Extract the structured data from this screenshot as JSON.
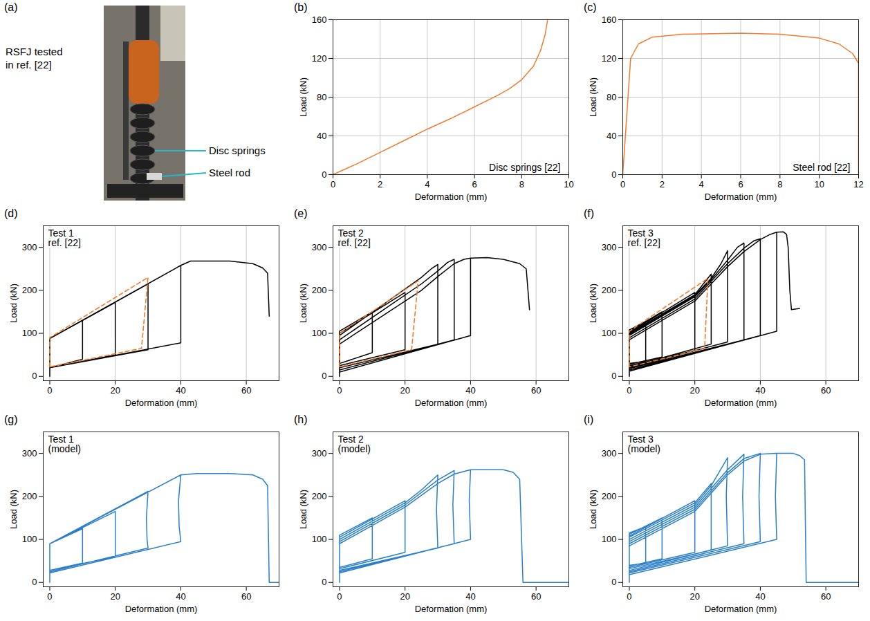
{
  "photo_panel": {
    "letter": "(a)",
    "caption": [
      "RSFJ tested",
      "in ref. [22]"
    ],
    "callouts": [
      "Disc springs",
      "Steel rod"
    ]
  },
  "chart_data": [
    {
      "letter": "(b)",
      "type": "line",
      "annotation": [
        "Disc springs [22]"
      ],
      "xlabel": "Deformation (mm)",
      "ylabel": "Load (kN)",
      "xlim": [
        0,
        10
      ],
      "ylim": [
        0,
        160
      ],
      "xticks": [
        0,
        2,
        4,
        6,
        8,
        10
      ],
      "yticks": [
        0,
        40,
        80,
        120,
        160
      ],
      "grid": true,
      "series": [
        {
          "color": "#f07c2e",
          "line_style": "solid",
          "x": [
            0,
            1,
            2,
            3,
            4,
            5,
            6,
            7,
            7.5,
            8,
            8.5,
            8.8,
            9,
            9.1
          ],
          "values": [
            0,
            11,
            23,
            35,
            47,
            58,
            70,
            82,
            89,
            98,
            112,
            128,
            145,
            160
          ]
        }
      ]
    },
    {
      "letter": "(c)",
      "type": "line",
      "annotation": [
        "Steel rod [22]"
      ],
      "xlabel": "Deformation (mm)",
      "ylabel": "Load (kN)",
      "xlim": [
        0,
        12
      ],
      "ylim": [
        0,
        160
      ],
      "xticks": [
        0,
        2,
        4,
        6,
        8,
        10,
        12
      ],
      "yticks": [
        0,
        40,
        80,
        120,
        160
      ],
      "grid": true,
      "series": [
        {
          "color": "#f07c2e",
          "line_style": "solid",
          "x": [
            0,
            0.4,
            0.8,
            1.5,
            3,
            6,
            8,
            10,
            11,
            11.7,
            12,
            12
          ],
          "values": [
            0,
            120,
            135,
            142,
            145,
            146,
            145,
            141,
            135,
            125,
            115,
            0
          ]
        }
      ]
    },
    {
      "letter": "(d)",
      "type": "line",
      "annotation": [
        "Test 1",
        "ref. [22]"
      ],
      "xlabel": "Deformation (mm)",
      "ylabel": "Load (kN)",
      "xlim": [
        -2,
        70
      ],
      "ylim": [
        -10,
        350
      ],
      "xticks": [
        0,
        20,
        40,
        60
      ],
      "yticks": [
        0,
        100,
        200,
        300
      ],
      "grid": "x",
      "series": [
        {
          "color": "#000000",
          "line_style": "solid",
          "x": [
            0,
            0,
            10,
            10,
            0,
            0,
            20,
            20,
            0,
            0,
            30,
            30,
            0,
            0,
            40,
            40,
            0,
            0,
            40,
            43,
            55,
            62,
            65,
            66.5,
            67
          ],
          "values": [
            0,
            88,
            130,
            40,
            20,
            88,
            172,
            50,
            20,
            88,
            215,
            62,
            20,
            88,
            258,
            78,
            20,
            88,
            258,
            268,
            268,
            262,
            252,
            240,
            140
          ]
        },
        {
          "color": "#f07c2e",
          "line_style": "dashed",
          "x": [
            0,
            0,
            30,
            28,
            0
          ],
          "values": [
            22,
            90,
            230,
            65,
            22
          ]
        }
      ]
    },
    {
      "letter": "(e)",
      "type": "line",
      "annotation": [
        "Test 2",
        "ref. [22]"
      ],
      "xlabel": "Deformation (mm)",
      "ylabel": "Load (kN)",
      "xlim": [
        -2,
        70
      ],
      "ylim": [
        -10,
        350
      ],
      "xticks": [
        0,
        20,
        40,
        60
      ],
      "yticks": [
        0,
        100,
        200,
        300
      ],
      "grid": "x",
      "series": [
        {
          "color": "#000000",
          "line_style": "solid",
          "x": [
            0,
            0,
            10,
            10,
            0,
            0,
            20,
            20,
            0,
            0,
            25,
            28,
            30,
            30,
            0,
            0,
            25,
            30,
            33,
            35,
            35,
            0,
            0,
            25,
            30,
            35,
            38,
            40,
            40,
            0,
            0,
            25,
            30,
            35,
            38,
            40,
            45,
            50,
            55,
            57,
            58
          ],
          "values": [
            0,
            105,
            150,
            55,
            30,
            100,
            195,
            62,
            25,
            95,
            230,
            250,
            260,
            75,
            20,
            85,
            215,
            245,
            265,
            272,
            85,
            15,
            75,
            200,
            232,
            262,
            272,
            275,
            95,
            10,
            75,
            200,
            232,
            262,
            272,
            275,
            276,
            272,
            262,
            250,
            155
          ]
        },
        {
          "color": "#f07c2e",
          "line_style": "dashed",
          "x": [
            0,
            0,
            24,
            22,
            0
          ],
          "values": [
            22,
            100,
            222,
            62,
            22
          ]
        }
      ]
    },
    {
      "letter": "(f)",
      "type": "line",
      "annotation": [
        "Test 3",
        "ref. [22]"
      ],
      "xlabel": "Deformation (mm)",
      "ylabel": "Load (kN)",
      "xlim": [
        -2,
        70
      ],
      "ylim": [
        -10,
        350
      ],
      "xticks": [
        0,
        20,
        40,
        60
      ],
      "yticks": [
        0,
        100,
        200,
        300
      ],
      "grid": "x",
      "series": [
        {
          "color": "#000000",
          "line_style": "solid",
          "x": [
            0,
            0,
            5,
            5,
            0,
            0,
            10,
            10,
            0,
            0,
            20,
            20,
            0,
            0,
            20,
            25,
            25,
            0,
            0,
            20,
            25,
            28,
            30,
            30,
            0,
            0,
            20,
            25,
            30,
            33,
            35,
            35,
            0,
            0,
            20,
            30,
            35,
            38,
            40,
            40,
            0,
            0,
            20,
            30,
            35,
            40,
            43,
            45,
            45,
            0,
            0,
            20,
            30,
            35,
            40,
            43,
            45,
            47,
            48,
            48.5,
            49,
            49.5,
            52
          ],
          "values": [
            0,
            108,
            128,
            35,
            30,
            105,
            150,
            45,
            28,
            102,
            195,
            60,
            25,
            100,
            190,
            238,
            75,
            22,
            98,
            188,
            228,
            262,
            292,
            80,
            20,
            95,
            185,
            225,
            270,
            300,
            310,
            85,
            18,
            90,
            180,
            262,
            298,
            315,
            320,
            95,
            15,
            85,
            175,
            255,
            290,
            318,
            330,
            335,
            105,
            12,
            85,
            175,
            255,
            290,
            318,
            330,
            335,
            336,
            330,
            300,
            200,
            155,
            158
          ]
        },
        {
          "color": "#f07c2e",
          "line_style": "dashed",
          "x": [
            0,
            0,
            24,
            23,
            0
          ],
          "values": [
            22,
            105,
            228,
            65,
            22
          ]
        }
      ]
    },
    {
      "letter": "(g)",
      "type": "line",
      "annotation": [
        "Test 1",
        "(model)"
      ],
      "xlabel": "Deformation (mm)",
      "ylabel": "Load (kN)",
      "xlim": [
        -2,
        70
      ],
      "ylim": [
        -10,
        350
      ],
      "xticks": [
        0,
        20,
        40,
        60
      ],
      "yticks": [
        0,
        100,
        200,
        300
      ],
      "grid": false,
      "series": [
        {
          "color": "#2a7fc8",
          "line_style": "solid",
          "x": [
            0,
            0,
            10,
            10,
            0,
            0,
            20,
            20,
            0,
            0,
            30,
            29.5,
            29.7,
            30,
            0,
            0,
            40,
            39.3,
            39.5,
            40,
            0,
            0,
            40,
            45,
            55,
            62,
            65,
            66.5,
            67,
            70
          ],
          "values": [
            0,
            90,
            125,
            45,
            28,
            90,
            165,
            60,
            28,
            90,
            212,
            150,
            100,
            80,
            25,
            90,
            250,
            190,
            130,
            95,
            22,
            90,
            250,
            253,
            253,
            250,
            240,
            225,
            0,
            0
          ]
        }
      ]
    },
    {
      "letter": "(h)",
      "type": "line",
      "annotation": [
        "Test 2",
        "(model)"
      ],
      "xlabel": "Deformation (mm)",
      "ylabel": "Load (kN)",
      "xlim": [
        -2,
        70
      ],
      "ylim": [
        -10,
        350
      ],
      "xticks": [
        0,
        20,
        40,
        60
      ],
      "yticks": [
        0,
        100,
        200,
        300
      ],
      "grid": false,
      "series": [
        {
          "color": "#2a7fc8",
          "line_style": "solid",
          "x": [
            0,
            0,
            10,
            10,
            0,
            0,
            20,
            20,
            0,
            0,
            20,
            25,
            30,
            29.6,
            30,
            0,
            0,
            20,
            30,
            35,
            34.6,
            35,
            0,
            0,
            20,
            30,
            35,
            40,
            39.6,
            40,
            0,
            0,
            20,
            30,
            35,
            40,
            50,
            53,
            55,
            56,
            70
          ],
          "values": [
            0,
            110,
            150,
            55,
            35,
            105,
            190,
            70,
            32,
            100,
            185,
            215,
            250,
            170,
            80,
            28,
            95,
            180,
            238,
            260,
            180,
            90,
            25,
            90,
            175,
            230,
            252,
            262,
            190,
            100,
            22,
            90,
            175,
            230,
            252,
            262,
            262,
            256,
            240,
            0,
            0
          ]
        }
      ]
    },
    {
      "letter": "(i)",
      "type": "line",
      "annotation": [
        "Test 3",
        "(model)"
      ],
      "xlabel": "Deformation (mm)",
      "ylabel": "Load (kN)",
      "xlim": [
        -2,
        70
      ],
      "ylim": [
        -10,
        350
      ],
      "xticks": [
        0,
        20,
        40,
        60
      ],
      "yticks": [
        0,
        100,
        200,
        300
      ],
      "grid": false,
      "series": [
        {
          "color": "#2a7fc8",
          "line_style": "solid",
          "x": [
            0,
            0,
            5,
            5,
            0,
            0,
            10,
            10,
            0,
            0,
            20,
            20,
            0,
            0,
            20,
            25,
            25,
            0,
            0,
            20,
            25,
            30,
            29.6,
            30,
            0,
            0,
            20,
            30,
            35,
            34.6,
            35,
            0,
            0,
            20,
            30,
            35,
            40,
            39.6,
            40,
            0,
            0,
            20,
            30,
            35,
            40,
            45,
            44.6,
            45,
            0,
            0,
            20,
            30,
            35,
            40,
            45,
            50,
            52,
            53.5,
            54,
            70
          ],
          "values": [
            0,
            115,
            130,
            45,
            40,
            112,
            150,
            55,
            38,
            108,
            190,
            70,
            35,
            105,
            185,
            230,
            75,
            32,
            100,
            180,
            225,
            290,
            200,
            85,
            28,
            95,
            175,
            262,
            298,
            200,
            90,
            25,
            90,
            170,
            255,
            288,
            300,
            200,
            95,
            22,
            85,
            165,
            250,
            282,
            298,
            300,
            200,
            100,
            18,
            85,
            165,
            250,
            282,
            298,
            300,
            300,
            295,
            285,
            0,
            0
          ]
        }
      ]
    }
  ]
}
